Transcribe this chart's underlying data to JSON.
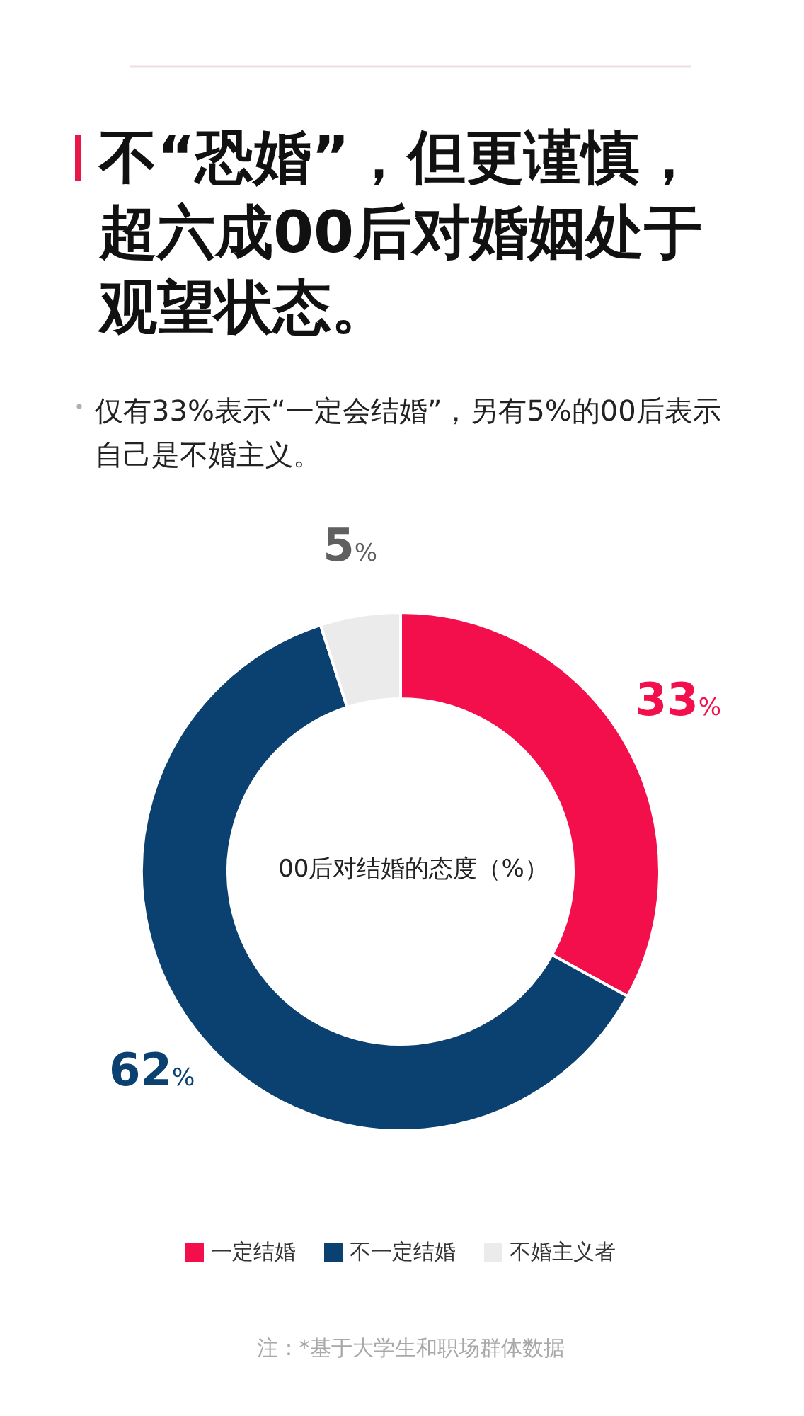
{
  "chart_data": {
    "type": "donut",
    "title": "不“恐婚”，但更谨慎，超六成00后对婚姻处于观望状态。",
    "subtitle": "仅有33%表示“一定会结婚”，另有5%的00后表示自己是不婚主义。",
    "categories": [
      "一定结婚",
      "不一定结婚",
      "不婚主义者"
    ],
    "values": [
      33,
      62,
      5
    ],
    "colors": [
      "#f20f4b",
      "#0a4170",
      "#ebebeb"
    ],
    "value_labels": [
      "33%",
      "62%",
      "5%"
    ],
    "legend": "bottom",
    "annotations": [
      "00后对结婚的态度（%）",
      "注：*基于大学生和职场群体数据"
    ]
  }
}
